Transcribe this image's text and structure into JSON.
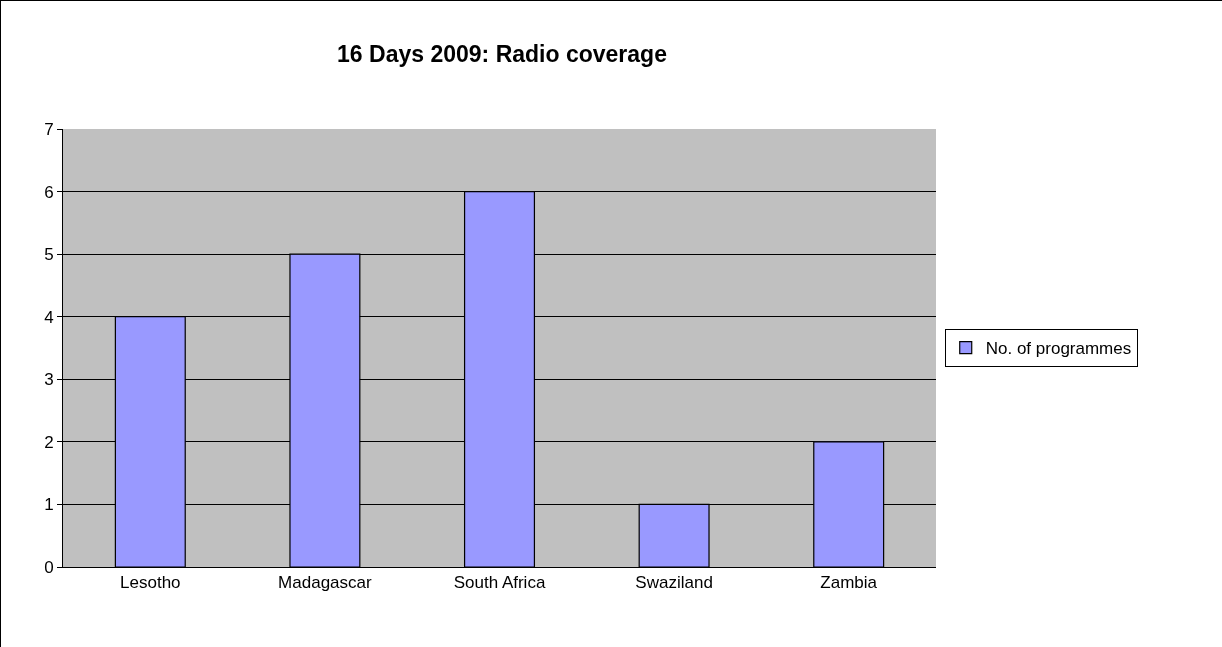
{
  "chart_data": {
    "type": "bar",
    "title": "16 Days 2009: Radio coverage",
    "categories": [
      "Lesotho",
      "Madagascar",
      "South Africa",
      "Swaziland",
      "Zambia"
    ],
    "series": [
      {
        "name": "No. of programmes",
        "color": "#9999ff",
        "values": [
          4,
          5,
          6,
          1,
          2
        ]
      }
    ],
    "ylim": [
      0,
      7
    ],
    "yticks": [
      0,
      1,
      2,
      3,
      4,
      5,
      6,
      7
    ],
    "grid": "y",
    "legend": "right"
  }
}
